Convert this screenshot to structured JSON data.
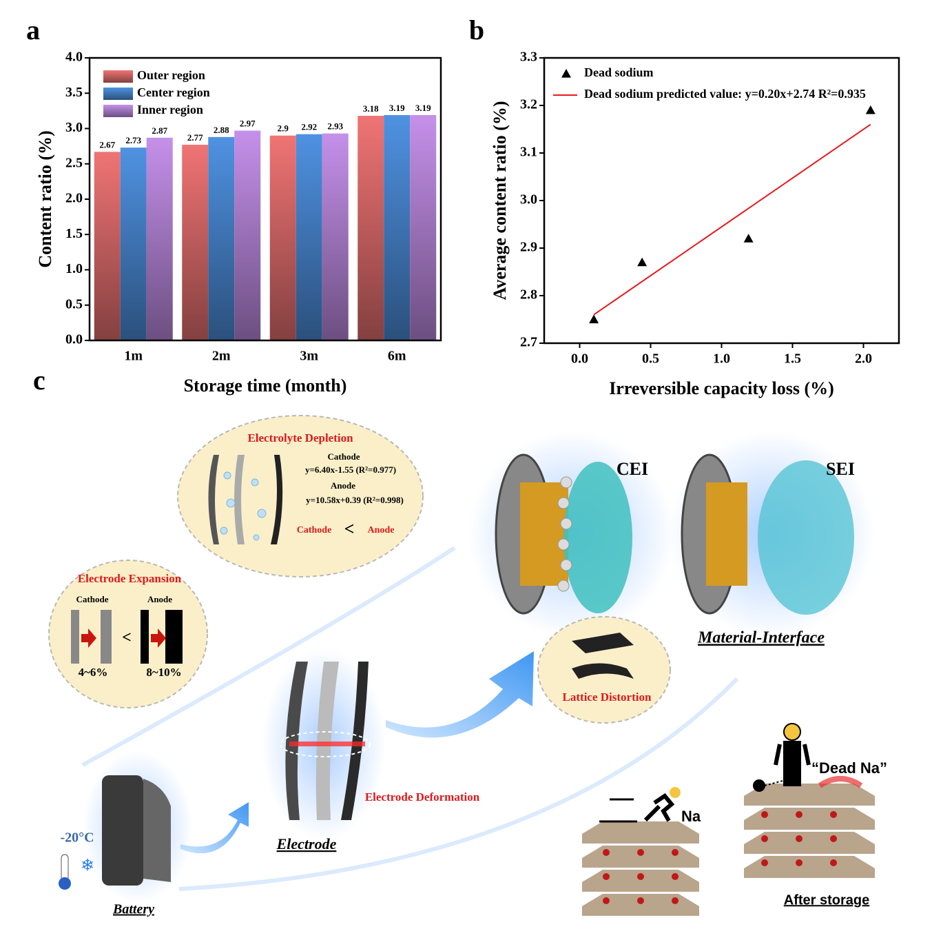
{
  "chart_data": [
    {
      "type": "bar",
      "panel_label": "a",
      "x_label": "Storage time (month)",
      "y_label": "Content ratio (%)",
      "categories": [
        "1m",
        "2m",
        "3m",
        "6m"
      ],
      "series": [
        {
          "name": "Outer region",
          "color": "#f07474",
          "values": [
            2.67,
            2.77,
            2.9,
            3.18
          ]
        },
        {
          "name": "Center region",
          "color": "#4f92e2",
          "values": [
            2.73,
            2.88,
            2.92,
            3.19
          ]
        },
        {
          "name": "Inner region",
          "color": "#c590ea",
          "values": [
            2.87,
            2.97,
            2.93,
            3.19
          ]
        }
      ],
      "ylim": [
        0,
        4
      ],
      "yticks": [
        {
          "value": 0,
          "label": "0.0"
        },
        0.5,
        {
          "value": 1,
          "label": "1.0"
        },
        1.5,
        {
          "value": 2,
          "label": "2.0"
        },
        2.5,
        {
          "value": 3,
          "label": "3.0"
        },
        3.5,
        {
          "value": 4,
          "label": "4.0"
        }
      ],
      "legend": "upper left"
    },
    {
      "type": "scatter",
      "panel_label": "b",
      "x_label": "Irreversible capacity loss (%)",
      "y_label": "Average content ratio (%)",
      "series": [
        {
          "name": "Dead sodium",
          "color": "#000000",
          "style": "marker",
          "x": [
            0.1,
            0.44,
            1.19,
            2.05
          ],
          "values": [
            2.75,
            2.87,
            2.92,
            3.19
          ]
        },
        {
          "name": "Dead sodium predicted value: y=0.20x+2.74 R²=0.935",
          "color": "#e8191b",
          "style": "line",
          "x": [
            0.1,
            2.05
          ],
          "values": [
            2.76,
            3.16
          ]
        }
      ],
      "xlim": [
        -0.25,
        2.25
      ],
      "xticks": [
        {
          "value": 0,
          "label": "0.0"
        },
        0.5,
        {
          "value": 1,
          "label": "1.0"
        },
        1.5,
        {
          "value": 2,
          "label": "2.0"
        }
      ],
      "ylim": [
        2.7,
        3.3
      ],
      "yticks": [
        2.7,
        2.8,
        2.9,
        {
          "value": 3,
          "label": "3.0"
        },
        3.1,
        3.2,
        3.3
      ],
      "legend": "upper left"
    }
  ],
  "diagram": {
    "panel_label": "c",
    "electrolyte": {
      "title": "Electrolyte Depletion",
      "cathode": "Cathode",
      "cathode_eq": "y=6.40x-1.55 (R²=0.977)",
      "anode": "Anode",
      "anode_eq": "y=10.58x+0.39 (R²=0.998)",
      "cmp_left": "Cathode",
      "cmp": "<",
      "cmp_right": "Anode"
    },
    "expansion": {
      "title": "Electrode Expansion",
      "cathode": "Cathode",
      "anode": "Anode",
      "cmp": "<",
      "cathode_value": "4~6%",
      "anode_value": "8~10%"
    },
    "cei": "CEI",
    "sei": "SEI",
    "material_interface": "Material-Interface",
    "lattice": "Lattice Distortion",
    "deformation": "Electrode Deformation",
    "electrode": "Electrode",
    "temperature": "-20°C",
    "battery": "Battery",
    "na": "Na",
    "dead_na": "“Dead Na”",
    "after_storage": "After storage"
  }
}
